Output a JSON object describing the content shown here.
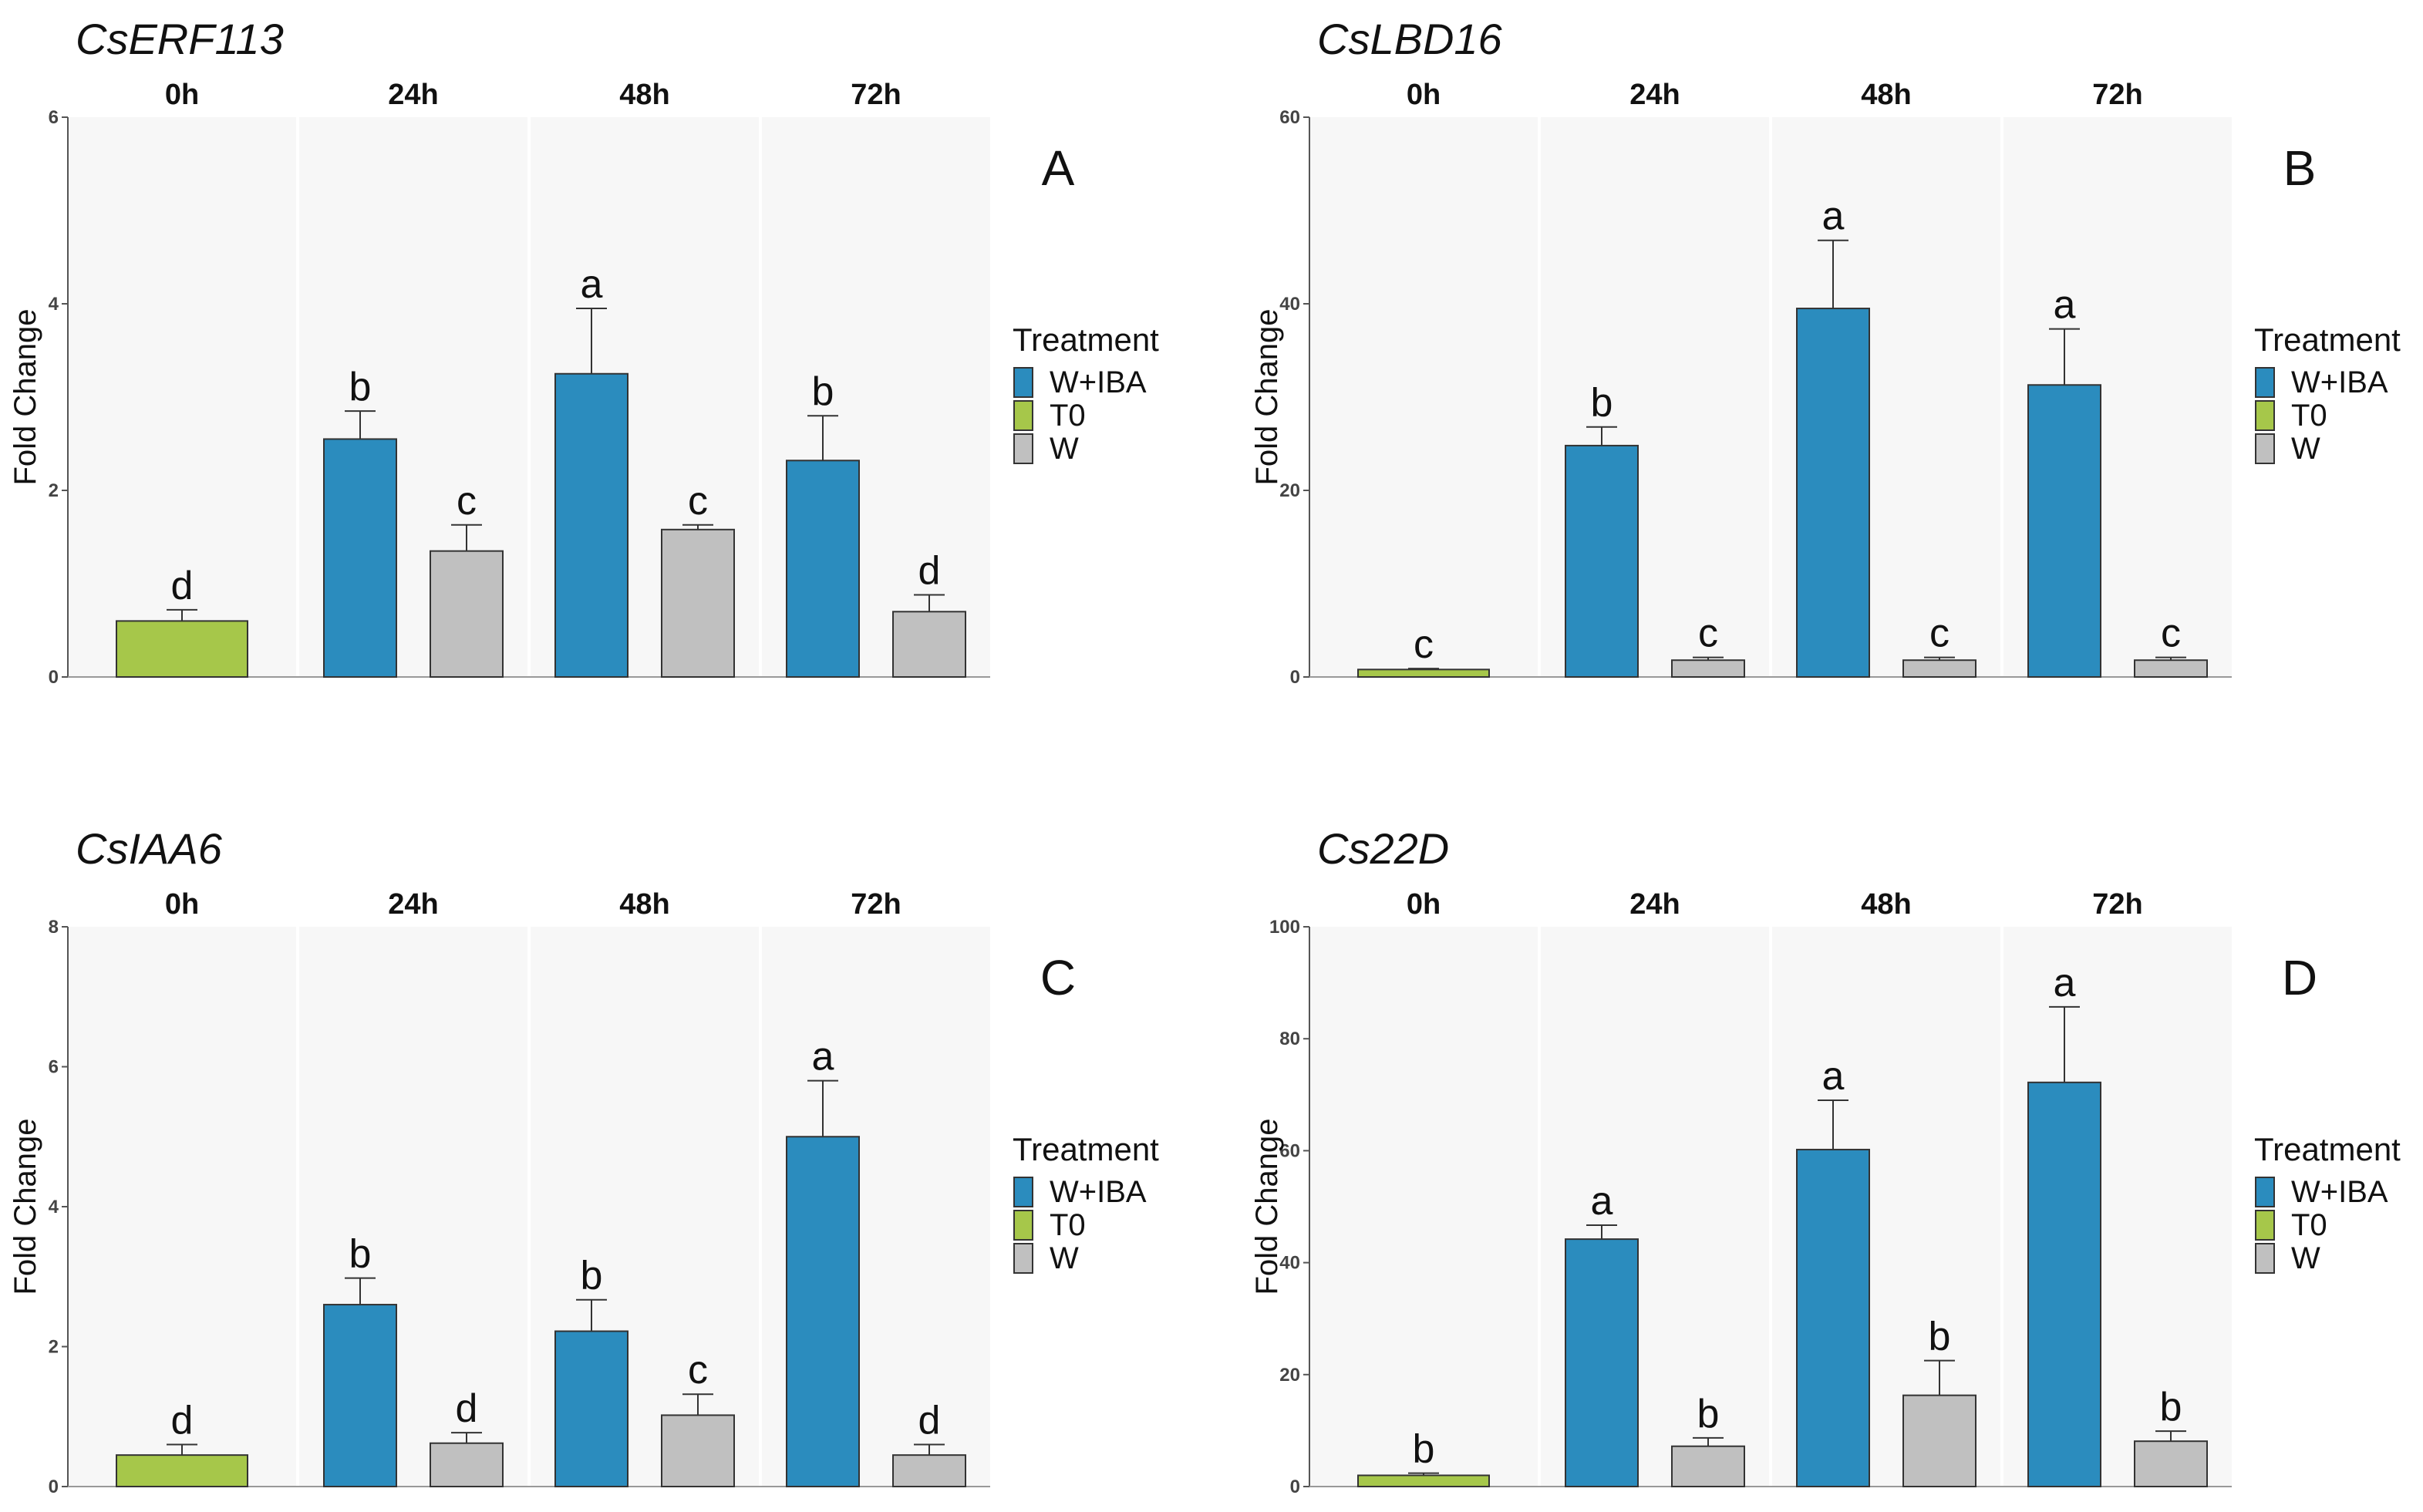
{
  "colors": {
    "W+IBA": "#2b8cbe",
    "T0": "#a6c74a",
    "W": "#c0c0c0",
    "panel_bg": "#f7f7f7",
    "bar_border": "#333333",
    "axis": "#555555"
  },
  "chart_data": [
    {
      "type": "bar",
      "title": "CsERF113",
      "panel_letter": "A",
      "ylabel": "Fold Change",
      "xlabel": "",
      "ylim": [
        0,
        6
      ],
      "yticks": [
        0,
        2,
        4,
        6
      ],
      "facets": [
        "0h",
        "24h",
        "48h",
        "72h"
      ],
      "legend": {
        "title": "Treatment",
        "items": [
          "W+IBA",
          "T0",
          "W"
        ]
      },
      "bars": [
        {
          "facet": "0h",
          "treatment": "T0",
          "value": 0.6,
          "error": 0.12,
          "letter": "d"
        },
        {
          "facet": "24h",
          "treatment": "W+IBA",
          "value": 2.55,
          "error": 0.3,
          "letter": "b"
        },
        {
          "facet": "24h",
          "treatment": "W",
          "value": 1.35,
          "error": 0.28,
          "letter": "c"
        },
        {
          "facet": "48h",
          "treatment": "W+IBA",
          "value": 3.25,
          "error": 0.7,
          "letter": "a"
        },
        {
          "facet": "48h",
          "treatment": "W",
          "value": 1.58,
          "error": 0.05,
          "letter": "c"
        },
        {
          "facet": "72h",
          "treatment": "W+IBA",
          "value": 2.32,
          "error": 0.48,
          "letter": "b"
        },
        {
          "facet": "72h",
          "treatment": "W",
          "value": 0.7,
          "error": 0.18,
          "letter": "d"
        }
      ]
    },
    {
      "type": "bar",
      "title": "CsLBD16",
      "panel_letter": "B",
      "ylabel": "Fold Change",
      "xlabel": "",
      "ylim": [
        0,
        60
      ],
      "yticks": [
        0,
        20,
        40,
        60
      ],
      "facets": [
        "0h",
        "24h",
        "48h",
        "72h"
      ],
      "legend": {
        "title": "Treatment",
        "items": [
          "W+IBA",
          "T0",
          "W"
        ]
      },
      "bars": [
        {
          "facet": "0h",
          "treatment": "T0",
          "value": 0.8,
          "error": 0.1,
          "letter": "c"
        },
        {
          "facet": "24h",
          "treatment": "W+IBA",
          "value": 24.8,
          "error": 2.0,
          "letter": "b"
        },
        {
          "facet": "24h",
          "treatment": "W",
          "value": 1.8,
          "error": 0.3,
          "letter": "c"
        },
        {
          "facet": "48h",
          "treatment": "W+IBA",
          "value": 39.5,
          "error": 7.3,
          "letter": "a"
        },
        {
          "facet": "48h",
          "treatment": "W",
          "value": 1.8,
          "error": 0.3,
          "letter": "c"
        },
        {
          "facet": "72h",
          "treatment": "W+IBA",
          "value": 31.3,
          "error": 6.0,
          "letter": "a"
        },
        {
          "facet": "72h",
          "treatment": "W",
          "value": 1.8,
          "error": 0.3,
          "letter": "c"
        }
      ]
    },
    {
      "type": "bar",
      "title": "CsIAA6",
      "panel_letter": "C",
      "ylabel": "Fold Change",
      "xlabel": "",
      "ylim": [
        0,
        8
      ],
      "yticks": [
        0,
        2,
        4,
        6,
        8
      ],
      "facets": [
        "0h",
        "24h",
        "48h",
        "72h"
      ],
      "legend": {
        "title": "Treatment",
        "items": [
          "W+IBA",
          "T0",
          "W"
        ]
      },
      "bars": [
        {
          "facet": "0h",
          "treatment": "T0",
          "value": 0.45,
          "error": 0.15,
          "letter": "d"
        },
        {
          "facet": "24h",
          "treatment": "W+IBA",
          "value": 2.6,
          "error": 0.38,
          "letter": "b"
        },
        {
          "facet": "24h",
          "treatment": "W",
          "value": 0.62,
          "error": 0.15,
          "letter": "d"
        },
        {
          "facet": "48h",
          "treatment": "W+IBA",
          "value": 2.22,
          "error": 0.45,
          "letter": "b"
        },
        {
          "facet": "48h",
          "treatment": "W",
          "value": 1.02,
          "error": 0.3,
          "letter": "c"
        },
        {
          "facet": "72h",
          "treatment": "W+IBA",
          "value": 5.0,
          "error": 0.8,
          "letter": "a"
        },
        {
          "facet": "72h",
          "treatment": "W",
          "value": 0.45,
          "error": 0.15,
          "letter": "d"
        }
      ]
    },
    {
      "type": "bar",
      "title": "Cs22D",
      "panel_letter": "D",
      "ylabel": "Fold Change",
      "xlabel": "",
      "ylim": [
        0,
        100
      ],
      "yticks": [
        0,
        20,
        40,
        60,
        80,
        100
      ],
      "facets": [
        "0h",
        "24h",
        "48h",
        "72h"
      ],
      "legend": {
        "title": "Treatment",
        "items": [
          "W+IBA",
          "T0",
          "W"
        ]
      },
      "bars": [
        {
          "facet": "0h",
          "treatment": "T0",
          "value": 2.0,
          "error": 0.4,
          "letter": "b"
        },
        {
          "facet": "24h",
          "treatment": "W+IBA",
          "value": 44.2,
          "error": 2.5,
          "letter": "a"
        },
        {
          "facet": "24h",
          "treatment": "W",
          "value": 7.2,
          "error": 1.5,
          "letter": "b"
        },
        {
          "facet": "48h",
          "treatment": "W+IBA",
          "value": 60.2,
          "error": 8.8,
          "letter": "a"
        },
        {
          "facet": "48h",
          "treatment": "W",
          "value": 16.3,
          "error": 6.2,
          "letter": "b"
        },
        {
          "facet": "72h",
          "treatment": "W+IBA",
          "value": 72.2,
          "error": 13.5,
          "letter": "a"
        },
        {
          "facet": "72h",
          "treatment": "W",
          "value": 8.1,
          "error": 1.8,
          "letter": "b"
        }
      ]
    }
  ]
}
